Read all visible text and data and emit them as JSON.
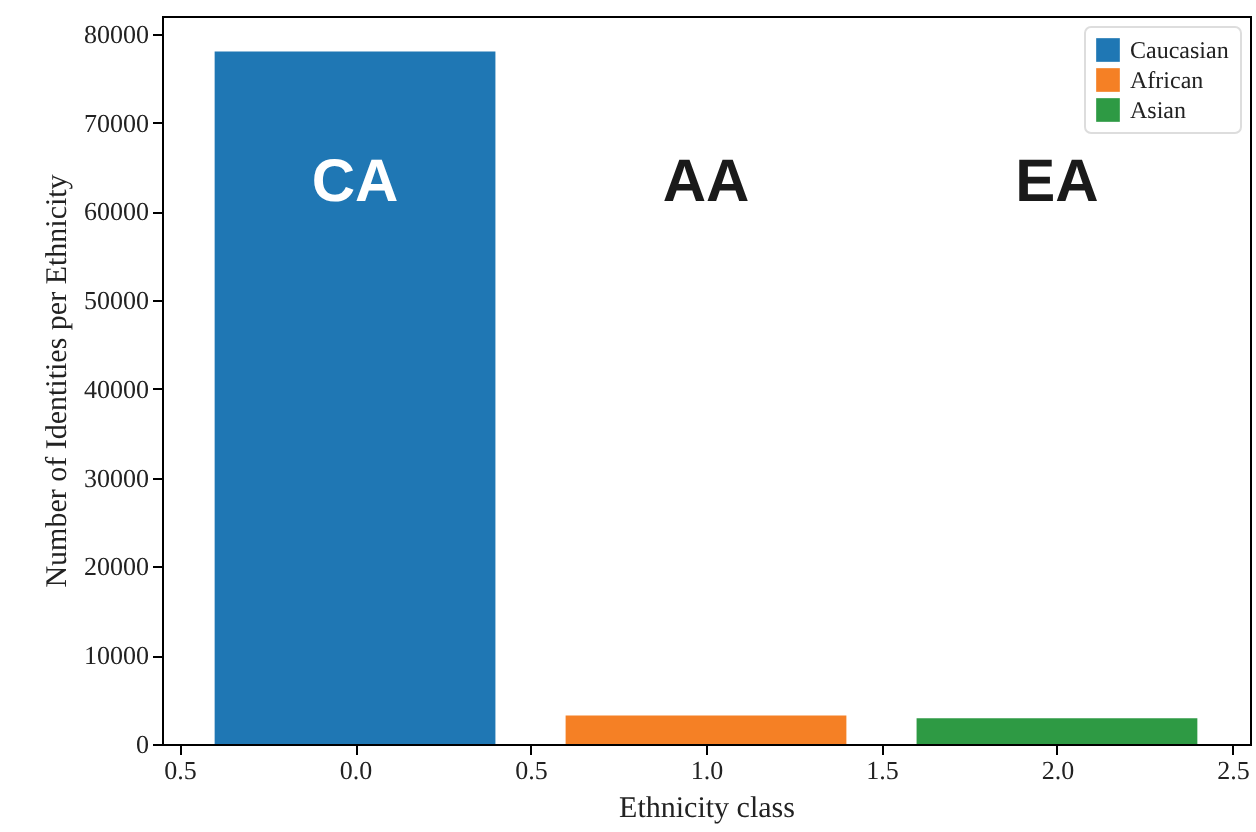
{
  "chart_data": {
    "type": "bar",
    "xlabel": "Ethnicity class",
    "ylabel": "Number of Identities per Ethnicity",
    "series": [
      {
        "name": "Caucasian",
        "color": "#1f77b4",
        "x": [
          0
        ],
        "values": [
          78000
        ]
      },
      {
        "name": "African",
        "color": "#f58025",
        "x": [
          1
        ],
        "values": [
          3200
        ]
      },
      {
        "name": "Asian",
        "color": "#2e9a44",
        "x": [
          2
        ],
        "values": [
          2900
        ]
      }
    ],
    "annotations": [
      "CA",
      "AA",
      "EA"
    ],
    "xlim": [
      -0.55,
      2.55
    ],
    "xticks": [
      {
        "value": -0.5,
        "label": "0.5"
      },
      {
        "value": 0,
        "label": "0.0"
      },
      0.5,
      {
        "value": 1,
        "label": "1.0"
      },
      1.5,
      {
        "value": 2,
        "label": "2.0"
      },
      2.5
    ],
    "ylim": [
      0,
      82000
    ],
    "yticks": [
      0,
      10000,
      20000,
      30000,
      40000,
      50000,
      60000,
      70000,
      80000
    ],
    "legend": "top right",
    "grid": false
  }
}
